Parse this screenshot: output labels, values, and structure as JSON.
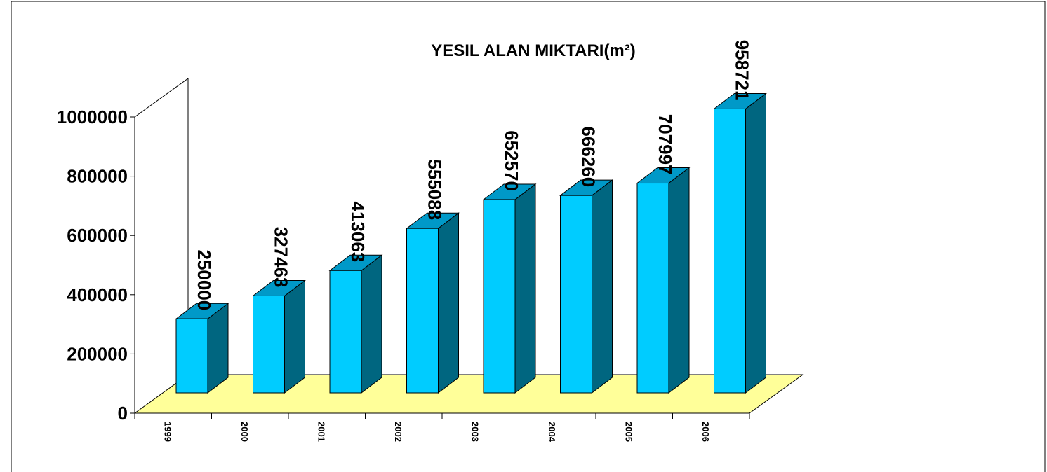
{
  "chart_data": {
    "type": "bar3d",
    "title": "YESIL ALAN MIKTARI(m²)",
    "categories": [
      "1999",
      "2000",
      "2001",
      "2002",
      "2003",
      "2004",
      "2005",
      "2006"
    ],
    "values": [
      250000,
      327463,
      413063,
      555088,
      652570,
      666260,
      707997,
      958721
    ],
    "color": "#00ccff",
    "side_color": "#006680",
    "top_color": "#0099c8",
    "floor_color": "#ffff99",
    "ylim": [
      0,
      1000000
    ],
    "yticks": [
      0,
      200000,
      400000,
      600000,
      800000,
      1000000
    ]
  }
}
